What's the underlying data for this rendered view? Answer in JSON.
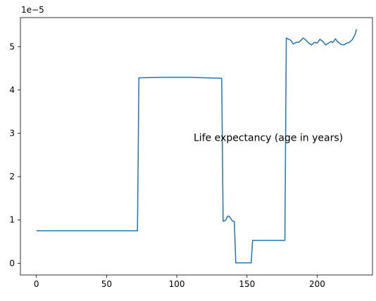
{
  "chart_data": {
    "type": "line",
    "title": "",
    "xlabel": "",
    "ylabel": "",
    "y_offset_label": "1e−5",
    "xlim": [
      -11.4,
      239.4
    ],
    "ylim": [
      -0.27,
      5.67
    ],
    "x_ticks": [
      0,
      50,
      100,
      150,
      200
    ],
    "x_tick_labels": [
      "0",
      "50",
      "100",
      "150",
      "200"
    ],
    "y_ticks": [
      0,
      1,
      2,
      3,
      4,
      5
    ],
    "y_tick_labels": [
      "0",
      "1",
      "2",
      "3",
      "4",
      "5"
    ],
    "grid": false,
    "annotation": {
      "text": "Life expectancy (age in years)",
      "x": 112,
      "y": 2.82
    },
    "series": [
      {
        "name": "Life expectancy (age in years)",
        "color": "#1f77b4",
        "points": [
          [
            0,
            0.75
          ],
          [
            72,
            0.75
          ],
          [
            73,
            4.28
          ],
          [
            90,
            4.29
          ],
          [
            110,
            4.29
          ],
          [
            120,
            4.28
          ],
          [
            132,
            4.27
          ],
          [
            133,
            0.97
          ],
          [
            134,
            0.98
          ],
          [
            135,
            1.0
          ],
          [
            136,
            1.08
          ],
          [
            137,
            1.09
          ],
          [
            138,
            1.06
          ],
          [
            139,
            1.0
          ],
          [
            140,
            0.97
          ],
          [
            141,
            0.96
          ],
          [
            142,
            0.01
          ],
          [
            153,
            0.01
          ],
          [
            154,
            0.53
          ],
          [
            177,
            0.53
          ],
          [
            178,
            5.2
          ],
          [
            179,
            5.18
          ],
          [
            181,
            5.15
          ],
          [
            183,
            5.06
          ],
          [
            185,
            5.1
          ],
          [
            187,
            5.1
          ],
          [
            188,
            5.13
          ],
          [
            190,
            5.2
          ],
          [
            192,
            5.15
          ],
          [
            194,
            5.08
          ],
          [
            196,
            5.04
          ],
          [
            198,
            5.1
          ],
          [
            200,
            5.08
          ],
          [
            202,
            5.17
          ],
          [
            204,
            5.12
          ],
          [
            206,
            5.04
          ],
          [
            208,
            5.08
          ],
          [
            210,
            5.12
          ],
          [
            211,
            5.09
          ],
          [
            213,
            5.18
          ],
          [
            215,
            5.1
          ],
          [
            217,
            5.05
          ],
          [
            219,
            5.04
          ],
          [
            221,
            5.08
          ],
          [
            223,
            5.1
          ],
          [
            225,
            5.16
          ],
          [
            227,
            5.28
          ],
          [
            228,
            5.4
          ]
        ]
      }
    ]
  }
}
